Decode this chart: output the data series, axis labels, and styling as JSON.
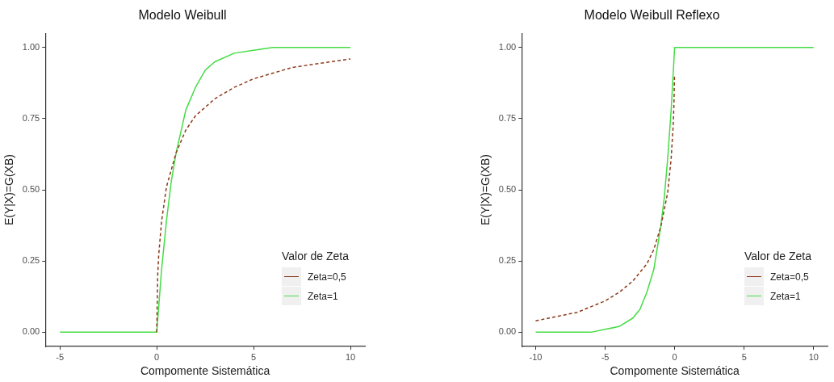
{
  "chart_data": [
    {
      "type": "line",
      "title": "Modelo Weibull",
      "xlabel": "Compomente Sistemática",
      "ylabel": "E(Y|X)=G(XB)",
      "legend_title": "Valor de Zeta",
      "legend": "bottom right",
      "xlim": [
        -5.75,
        10.75
      ],
      "xticks": [
        -5,
        0,
        5,
        10
      ],
      "ylim": [
        -0.05,
        1.05
      ],
      "yticks": [
        {
          "value": 0,
          "label": "0.00"
        },
        {
          "value": 0.25,
          "label": "0.25"
        },
        {
          "value": 0.5,
          "label": "0.50"
        },
        {
          "value": 0.75,
          "label": "0.75"
        },
        {
          "value": 1,
          "label": "1.00"
        }
      ],
      "series": [
        {
          "name": "Zeta=0,5",
          "color": "#8b3a1a",
          "line_style": "dashed",
          "x": [
            0,
            0.05,
            0.1,
            0.25,
            0.5,
            1,
            1.5,
            2,
            3,
            4,
            5,
            6,
            7,
            8,
            10
          ],
          "values": [
            0,
            0.2,
            0.27,
            0.39,
            0.51,
            0.63,
            0.71,
            0.76,
            0.82,
            0.86,
            0.89,
            0.91,
            0.93,
            0.94,
            0.96
          ]
        },
        {
          "name": "Zeta=1",
          "color": "#44dd44",
          "line_style": "solid",
          "x": [
            -5,
            0,
            0.25,
            0.5,
            0.75,
            1,
            1.5,
            2,
            2.5,
            3,
            4,
            5,
            6,
            10
          ],
          "values": [
            0,
            0,
            0.22,
            0.39,
            0.53,
            0.63,
            0.78,
            0.86,
            0.92,
            0.95,
            0.98,
            0.99,
            1,
            1
          ]
        }
      ]
    },
    {
      "type": "line",
      "title": "Modelo Weibull Reflexo",
      "xlabel": "Compomente Sistemática",
      "ylabel": "E(Y|X)=G(XB)",
      "legend_title": "Valor de Zeta",
      "legend": "bottom right",
      "xlim": [
        -11,
        11
      ],
      "xticks": [
        -10,
        -5,
        0,
        5,
        10
      ],
      "ylim": [
        -0.05,
        1.05
      ],
      "yticks": [
        {
          "value": 0,
          "label": "0.00"
        },
        {
          "value": 0.25,
          "label": "0.25"
        },
        {
          "value": 0.5,
          "label": "0.50"
        },
        {
          "value": 0.75,
          "label": "0.75"
        },
        {
          "value": 1,
          "label": "1.00"
        }
      ],
      "series": [
        {
          "name": "Zeta=0,5",
          "color": "#8b3a1a",
          "line_style": "dashed",
          "x": [
            -10,
            -9,
            -8,
            -7,
            -6,
            -5,
            -4,
            -3,
            -2,
            -1.5,
            -1,
            -0.5,
            -0.25,
            -0.1,
            -0.05,
            -0.01
          ],
          "values": [
            0.04,
            0.05,
            0.06,
            0.07,
            0.09,
            0.11,
            0.14,
            0.18,
            0.24,
            0.29,
            0.37,
            0.49,
            0.61,
            0.73,
            0.8,
            0.9
          ]
        },
        {
          "name": "Zeta=1",
          "color": "#44dd44",
          "line_style": "solid",
          "x": [
            -10,
            -6,
            -5,
            -4,
            -3,
            -2.5,
            -2,
            -1.5,
            -1,
            -0.75,
            -0.5,
            -0.25,
            0,
            10
          ],
          "values": [
            0,
            0,
            0.01,
            0.02,
            0.05,
            0.08,
            0.14,
            0.22,
            0.37,
            0.47,
            0.61,
            0.78,
            1,
            1
          ]
        }
      ]
    }
  ]
}
